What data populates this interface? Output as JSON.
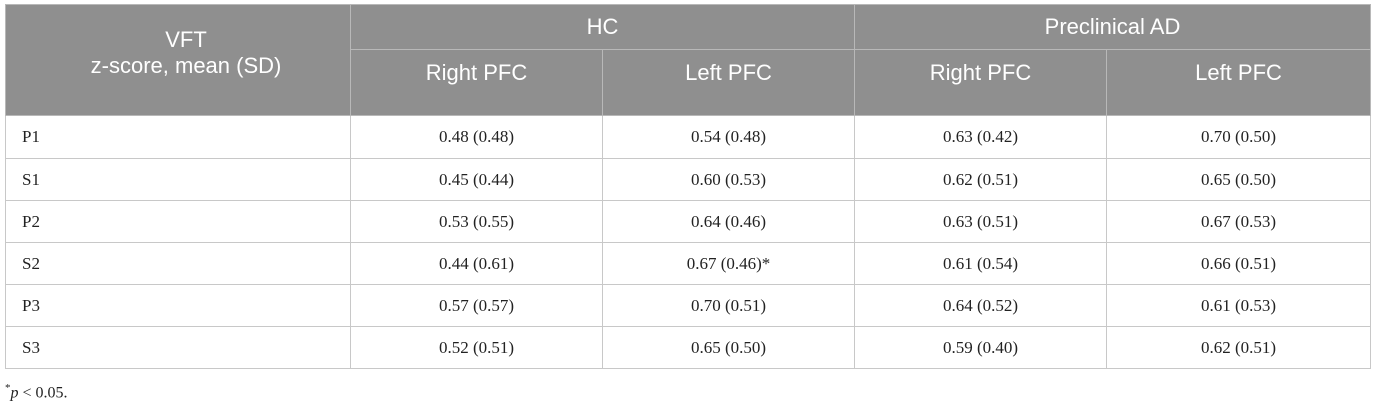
{
  "table": {
    "stub_header": [
      "VFT",
      "z-score, mean (SD)"
    ],
    "groups": [
      "HC",
      "Preclinical AD"
    ],
    "subheaders": [
      "Right PFC",
      "Left PFC",
      "Right PFC",
      "Left PFC"
    ],
    "rows": [
      {
        "label": "P1",
        "cells": [
          "0.48 (0.48)",
          "0.54 (0.48)",
          "0.63 (0.42)",
          "0.70 (0.50)"
        ]
      },
      {
        "label": "S1",
        "cells": [
          "0.45 (0.44)",
          "0.60 (0.53)",
          "0.62 (0.51)",
          "0.65 (0.50)"
        ]
      },
      {
        "label": "P2",
        "cells": [
          "0.53 (0.55)",
          "0.64 (0.46)",
          "0.63 (0.51)",
          "0.67 (0.53)"
        ]
      },
      {
        "label": "S2",
        "cells": [
          "0.44 (0.61)",
          "0.67 (0.46)*",
          "0.61 (0.54)",
          "0.66 (0.51)"
        ]
      },
      {
        "label": "P3",
        "cells": [
          "0.57 (0.57)",
          "0.70 (0.51)",
          "0.64 (0.52)",
          "0.61 (0.53)"
        ]
      },
      {
        "label": "S3",
        "cells": [
          "0.52 (0.51)",
          "0.65 (0.50)",
          "0.59 (0.40)",
          "0.62 (0.51)"
        ]
      }
    ]
  },
  "footnote": {
    "marker": "*",
    "var": "p",
    "text": " < 0.05."
  }
}
